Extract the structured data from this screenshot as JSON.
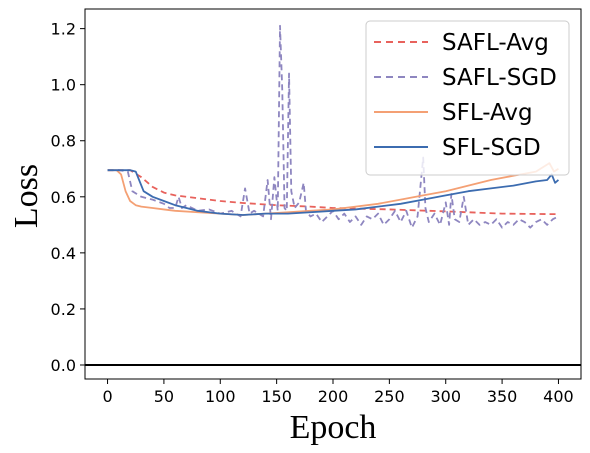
{
  "chart_data": {
    "type": "line",
    "title": "",
    "xlabel": "Epoch",
    "ylabel": "Loss",
    "xlim": [
      -20,
      420
    ],
    "ylim": [
      -0.05,
      1.27
    ],
    "xticks": [
      0,
      50,
      100,
      150,
      200,
      250,
      300,
      350,
      400
    ],
    "yticks": [
      0.0,
      0.2,
      0.4,
      0.6,
      0.8,
      1.0,
      1.2
    ],
    "ytick_labels": [
      "0.0",
      "0.2",
      "0.4",
      "0.6",
      "0.8",
      "1.0",
      "1.2"
    ],
    "reference_line": {
      "y": 0.0,
      "color": "#000000"
    },
    "legend": {
      "position": "top-right"
    },
    "grid": false,
    "series": [
      {
        "name": "SAFL-Avg",
        "style": "dashed",
        "color": "#e8625c",
        "points": [
          [
            0,
            0.695
          ],
          [
            20,
            0.695
          ],
          [
            30,
            0.67
          ],
          [
            40,
            0.635
          ],
          [
            50,
            0.615
          ],
          [
            60,
            0.605
          ],
          [
            70,
            0.6
          ],
          [
            80,
            0.595
          ],
          [
            100,
            0.585
          ],
          [
            120,
            0.578
          ],
          [
            150,
            0.57
          ],
          [
            180,
            0.565
          ],
          [
            200,
            0.56
          ],
          [
            250,
            0.555
          ],
          [
            300,
            0.548
          ],
          [
            350,
            0.54
          ],
          [
            400,
            0.538
          ]
        ]
      },
      {
        "name": "SAFL-SGD",
        "style": "dashed",
        "color": "#8e86c0",
        "points": [
          [
            0,
            0.695
          ],
          [
            10,
            0.695
          ],
          [
            18,
            0.69
          ],
          [
            22,
            0.62
          ],
          [
            30,
            0.6
          ],
          [
            40,
            0.59
          ],
          [
            50,
            0.575
          ],
          [
            55,
            0.56
          ],
          [
            60,
            0.56
          ],
          [
            63,
            0.6
          ],
          [
            66,
            0.56
          ],
          [
            70,
            0.57
          ],
          [
            80,
            0.55
          ],
          [
            90,
            0.555
          ],
          [
            100,
            0.54
          ],
          [
            110,
            0.55
          ],
          [
            118,
            0.53
          ],
          [
            122,
            0.63
          ],
          [
            126,
            0.54
          ],
          [
            130,
            0.55
          ],
          [
            138,
            0.53
          ],
          [
            142,
            0.66
          ],
          [
            145,
            0.52
          ],
          [
            148,
            0.67
          ],
          [
            151,
            0.55
          ],
          [
            153,
            1.21
          ],
          [
            155,
            0.98
          ],
          [
            157,
            0.56
          ],
          [
            159,
            0.55
          ],
          [
            161,
            1.04
          ],
          [
            163,
            0.62
          ],
          [
            166,
            0.56
          ],
          [
            170,
            0.58
          ],
          [
            174,
            0.65
          ],
          [
            176,
            0.55
          ],
          [
            180,
            0.53
          ],
          [
            185,
            0.54
          ],
          [
            190,
            0.51
          ],
          [
            195,
            0.53
          ],
          [
            200,
            0.55
          ],
          [
            205,
            0.52
          ],
          [
            210,
            0.54
          ],
          [
            215,
            0.51
          ],
          [
            220,
            0.53
          ],
          [
            225,
            0.5
          ],
          [
            230,
            0.53
          ],
          [
            235,
            0.52
          ],
          [
            240,
            0.54
          ],
          [
            245,
            0.5
          ],
          [
            250,
            0.52
          ],
          [
            255,
            0.55
          ],
          [
            260,
            0.51
          ],
          [
            265,
            0.55
          ],
          [
            270,
            0.49
          ],
          [
            275,
            0.53
          ],
          [
            280,
            0.74
          ],
          [
            282,
            0.56
          ],
          [
            285,
            0.51
          ],
          [
            290,
            0.54
          ],
          [
            295,
            0.5
          ],
          [
            300,
            0.58
          ],
          [
            303,
            0.5
          ],
          [
            305,
            0.61
          ],
          [
            308,
            0.52
          ],
          [
            312,
            0.51
          ],
          [
            316,
            0.6
          ],
          [
            320,
            0.5
          ],
          [
            325,
            0.52
          ],
          [
            330,
            0.5
          ],
          [
            335,
            0.51
          ],
          [
            340,
            0.5
          ],
          [
            345,
            0.52
          ],
          [
            350,
            0.49
          ],
          [
            355,
            0.51
          ],
          [
            360,
            0.5
          ],
          [
            365,
            0.52
          ],
          [
            370,
            0.51
          ],
          [
            375,
            0.49
          ],
          [
            380,
            0.51
          ],
          [
            385,
            0.52
          ],
          [
            390,
            0.5
          ],
          [
            395,
            0.52
          ],
          [
            400,
            0.53
          ]
        ]
      },
      {
        "name": "SFL-Avg",
        "style": "solid",
        "color": "#f4a074",
        "points": [
          [
            0,
            0.695
          ],
          [
            8,
            0.695
          ],
          [
            12,
            0.68
          ],
          [
            16,
            0.62
          ],
          [
            20,
            0.585
          ],
          [
            25,
            0.57
          ],
          [
            30,
            0.565
          ],
          [
            40,
            0.56
          ],
          [
            50,
            0.555
          ],
          [
            60,
            0.55
          ],
          [
            80,
            0.545
          ],
          [
            100,
            0.54
          ],
          [
            120,
            0.535
          ],
          [
            140,
            0.54
          ],
          [
            160,
            0.545
          ],
          [
            180,
            0.55
          ],
          [
            200,
            0.555
          ],
          [
            220,
            0.565
          ],
          [
            240,
            0.575
          ],
          [
            260,
            0.59
          ],
          [
            280,
            0.605
          ],
          [
            300,
            0.62
          ],
          [
            320,
            0.64
          ],
          [
            340,
            0.66
          ],
          [
            360,
            0.675
          ],
          [
            380,
            0.69
          ],
          [
            392,
            0.72
          ],
          [
            396,
            0.69
          ],
          [
            400,
            0.7
          ]
        ]
      },
      {
        "name": "SFL-SGD",
        "style": "solid",
        "color": "#3c6cb0",
        "points": [
          [
            0,
            0.695
          ],
          [
            20,
            0.695
          ],
          [
            25,
            0.69
          ],
          [
            28,
            0.66
          ],
          [
            32,
            0.62
          ],
          [
            40,
            0.6
          ],
          [
            50,
            0.585
          ],
          [
            60,
            0.57
          ],
          [
            70,
            0.56
          ],
          [
            80,
            0.55
          ],
          [
            90,
            0.545
          ],
          [
            100,
            0.54
          ],
          [
            120,
            0.535
          ],
          [
            140,
            0.54
          ],
          [
            160,
            0.54
          ],
          [
            180,
            0.545
          ],
          [
            200,
            0.55
          ],
          [
            220,
            0.555
          ],
          [
            240,
            0.565
          ],
          [
            260,
            0.575
          ],
          [
            280,
            0.59
          ],
          [
            300,
            0.605
          ],
          [
            320,
            0.62
          ],
          [
            340,
            0.63
          ],
          [
            360,
            0.64
          ],
          [
            380,
            0.655
          ],
          [
            390,
            0.66
          ],
          [
            394,
            0.68
          ],
          [
            397,
            0.65
          ],
          [
            400,
            0.66
          ]
        ]
      }
    ]
  }
}
